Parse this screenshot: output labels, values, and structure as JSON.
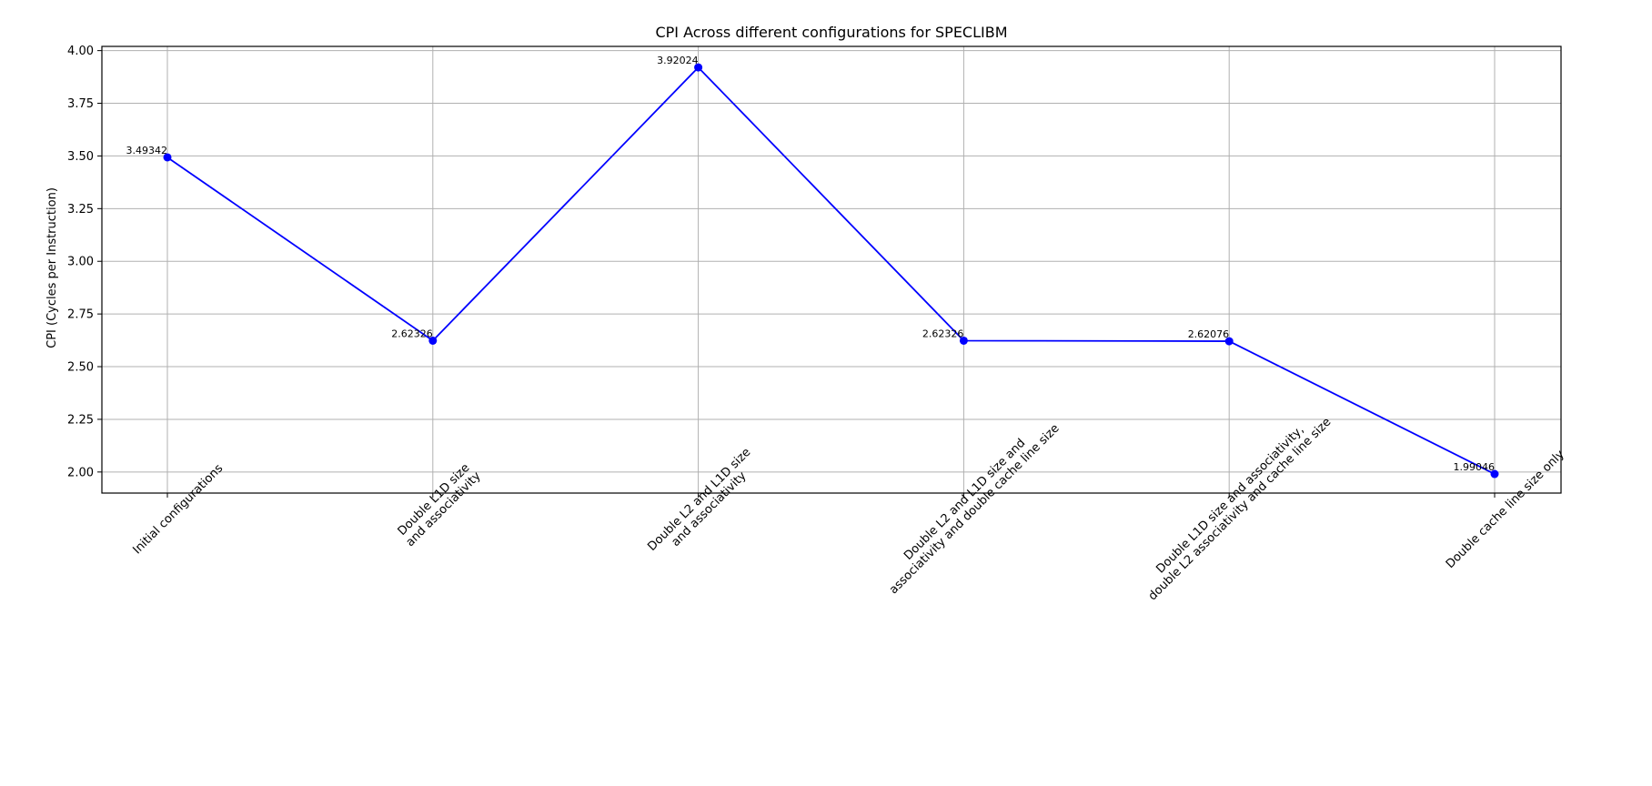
{
  "chart_data": {
    "type": "line",
    "title": "CPI Across different configurations for SPECLIBM",
    "xlabel": "",
    "ylabel": "CPI (Cycles per Instruction)",
    "categories": [
      [
        "Initial configurations"
      ],
      [
        "Double L1D size",
        "and associativity"
      ],
      [
        "Double L2 and L1D size",
        "and associativity"
      ],
      [
        "Double L2 and L1D size and",
        "associativity and double cache line size"
      ],
      [
        "Double L1D size and associativity,",
        "double L2 associativity and cache line size"
      ],
      [
        "Double cache line size only"
      ]
    ],
    "series": [
      {
        "color": "#0000ff",
        "values": [
          3.49342,
          2.62326,
          3.92024,
          2.62326,
          2.62076,
          1.99046
        ]
      }
    ],
    "data_labels": [
      "3.49342",
      "2.62326",
      "3.92024",
      "2.62326",
      "2.62076",
      "1.99046"
    ],
    "ylim": [
      1.9,
      4.02
    ],
    "yticks": [
      2.0,
      2.25,
      2.5,
      2.75,
      3.0,
      3.25,
      3.5,
      3.75,
      4.0
    ],
    "ytick_labels": [
      "2.00",
      "2.25",
      "2.50",
      "2.75",
      "3.00",
      "3.25",
      "3.50",
      "3.75",
      "4.00"
    ],
    "grid": true,
    "marker": "circle",
    "grid_color": "#b0b0b0"
  }
}
